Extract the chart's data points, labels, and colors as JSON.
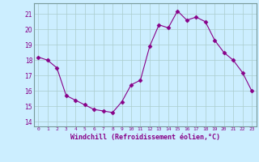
{
  "x": [
    0,
    1,
    2,
    3,
    4,
    5,
    6,
    7,
    8,
    9,
    10,
    11,
    12,
    13,
    14,
    15,
    16,
    17,
    18,
    19,
    20,
    21,
    22,
    23
  ],
  "y": [
    18.2,
    18.0,
    17.5,
    15.7,
    15.4,
    15.1,
    14.8,
    14.7,
    14.6,
    15.3,
    16.4,
    16.7,
    18.9,
    20.3,
    20.1,
    21.2,
    20.6,
    20.8,
    20.5,
    19.3,
    18.5,
    18.0,
    17.2,
    16.0
  ],
  "line_color": "#880088",
  "marker": "D",
  "marker_size": 2.5,
  "bg_color": "#cceeff",
  "grid_color": "#aacccc",
  "ylim": [
    13.7,
    21.7
  ],
  "yticks": [
    14,
    15,
    16,
    17,
    18,
    19,
    20,
    21
  ],
  "xlabel": "Windchill (Refroidissement éolien,°C)",
  "figsize": [
    3.2,
    2.0
  ],
  "dpi": 100
}
